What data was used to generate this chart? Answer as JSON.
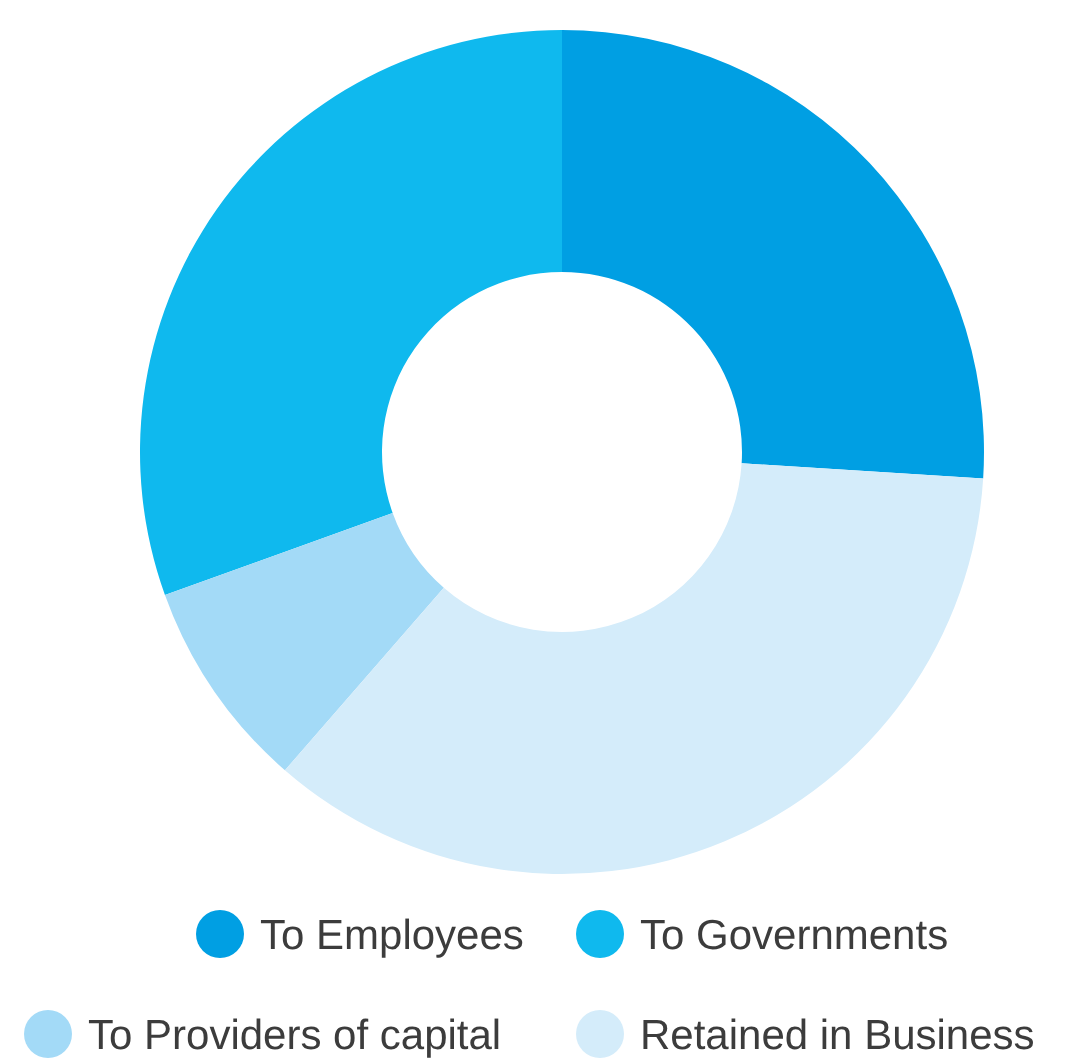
{
  "chart_data": {
    "type": "donut",
    "categories": [
      "To Employees",
      "To Governments",
      "To Providers of capital",
      "Retained in Business"
    ],
    "values": [
      26,
      30.5,
      8.1,
      35.4
    ],
    "colors": [
      "#009fe3",
      "#0fb9ee",
      "#a3daf7",
      "#d4ecfa"
    ],
    "legend": "bottom"
  }
}
